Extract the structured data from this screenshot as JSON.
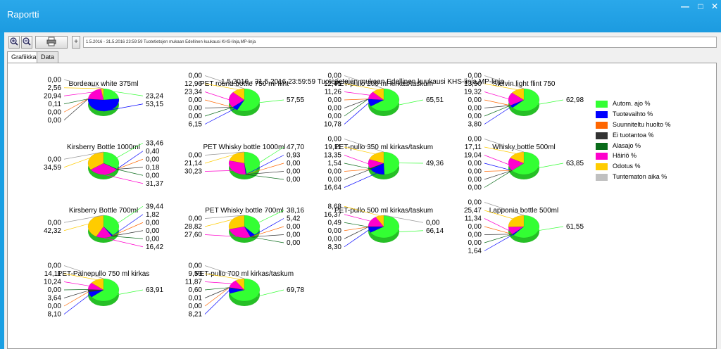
{
  "window": {
    "title": "Raportti"
  },
  "toolbar": {
    "path_text": "1.5.2016 - 31.5.2016 23:59:59 Tuotetietojen mukaan Edellinen kuukausi KHS-linja,MP-linja",
    "nav_label": "+"
  },
  "tabs": [
    {
      "label": "Grafiikka",
      "active": true
    },
    {
      "label": "Data",
      "active": false
    }
  ],
  "report_title": "1.5.2016 - 31.5.2016 23:59:59 Tuotetietojen mukaan Edellinen kuukausi KHS-linja,MP-linja",
  "legend": [
    {
      "label": "Autom. ajo %",
      "color": "#33ff33"
    },
    {
      "label": "Tuotevaihto %",
      "color": "#0000ff"
    },
    {
      "label": "Suunniteltu huolto %",
      "color": "#ff6600"
    },
    {
      "label": "Ei tuotantoa %",
      "color": "#333333"
    },
    {
      "label": "Alasajo %",
      "color": "#0a6b1a"
    },
    {
      "label": "Häiriö %",
      "color": "#ff00cc"
    },
    {
      "label": "Odotus %",
      "color": "#ffcc00"
    },
    {
      "label": "Tuntematon aika %",
      "color": "#c0c0c0"
    }
  ],
  "chart_data": [
    {
      "type": "pie",
      "title": "Bordeaux white 375ml",
      "values": [
        23.24,
        53.15,
        0.0,
        0.0,
        0.11,
        20.94,
        2.56,
        0.0
      ],
      "labels": [
        "23,24",
        "53,15",
        "0,00",
        "0,00",
        "0,11",
        "20,94",
        "2,56",
        "0,00"
      ]
    },
    {
      "type": "pie",
      "title": "PET round bottle 750 ml flint",
      "values": [
        57.55,
        6.15,
        0.0,
        0.0,
        0.0,
        23.34,
        12.96,
        0.0
      ],
      "labels": [
        "57,55",
        "6,15",
        "0,00",
        "0,00",
        "0,00",
        "23,34",
        "12,96",
        "0,00"
      ]
    },
    {
      "type": "pie",
      "title": "PET-pullo 200 ml kirkas/taskum",
      "values": [
        65.51,
        10.78,
        0.0,
        0.0,
        0.0,
        11.26,
        12.45,
        0.0
      ],
      "labels": [
        "65,51",
        "10,78",
        "0,00",
        "0,00",
        "0,00",
        "11,26",
        "12,45",
        "0,00"
      ]
    },
    {
      "type": "pie",
      "title": "Stelvin light flint 750",
      "values": [
        62.98,
        3.8,
        0.0,
        0.0,
        0.0,
        19.32,
        13.9,
        0.0
      ],
      "labels": [
        "62,98",
        "3,80",
        "0,00",
        "0,00",
        "0,00",
        "19,32",
        "13,90",
        "0,00"
      ]
    },
    {
      "type": "pie",
      "title": "Kirsberry Bottle 1000ml",
      "values": [
        33.46,
        0.4,
        0.0,
        0.18,
        0.0,
        31.37,
        34.59,
        0.0
      ],
      "labels": [
        "33,46",
        "0,40",
        "0,00",
        "0,18",
        "0,00",
        "31,37",
        "34,59",
        "0,00"
      ]
    },
    {
      "type": "pie",
      "title": "PET Whisky bottle 1000ml",
      "values": [
        47.7,
        0.93,
        0.0,
        0.0,
        0.0,
        30.23,
        21.14,
        0.0
      ],
      "labels": [
        "47,70",
        "0,93",
        "0,00",
        "0,00",
        "0,00",
        "30,23",
        "21,14",
        "0,00"
      ]
    },
    {
      "type": "pie",
      "title": "PET-pullo 350 ml kirkas/taskum",
      "values": [
        49.36,
        16.64,
        0.0,
        0.0,
        1.54,
        13.35,
        19.11,
        0.0
      ],
      "labels": [
        "49,36",
        "16,64",
        "0,00",
        "0,00",
        "1,54",
        "13,35",
        "19,11",
        "0,00"
      ]
    },
    {
      "type": "pie",
      "title": "Whisky bottle 500ml",
      "values": [
        63.85,
        0.0,
        0.0,
        0.0,
        0.0,
        19.04,
        17.11,
        0.0
      ],
      "labels": [
        "63,85",
        "0,00",
        "0,00",
        "0,00",
        "0,00",
        "19,04",
        "17,11",
        "0,00"
      ]
    },
    {
      "type": "pie",
      "title": "Kirsberry Bottle 700ml",
      "values": [
        39.44,
        1.82,
        0.0,
        0.0,
        0.0,
        16.42,
        42.32,
        0.0
      ],
      "labels": [
        "39,44",
        "1,82",
        "0,00",
        "0,00",
        "0,00",
        "16,42",
        "42,32",
        "0,00"
      ]
    },
    {
      "type": "pie",
      "title": "PET Whisky bottle 700ml",
      "values": [
        38.16,
        5.42,
        0.0,
        0.0,
        0.0,
        27.6,
        28.82,
        0.0
      ],
      "labels": [
        "38,16",
        "5,42",
        "0,00",
        "0,00",
        "0,00",
        "27,60",
        "28,82",
        "0,00"
      ]
    },
    {
      "type": "pie",
      "title": "PET-pullo 500 ml kirkas/taskum",
      "values": [
        66.14,
        8.3,
        0.0,
        0.0,
        0.49,
        16.37,
        8.68,
        0.0
      ],
      "labels": [
        "66,14",
        "8,30",
        "0,00",
        "0,00",
        "0,49",
        "16,37",
        "8,68",
        "0,00"
      ]
    },
    {
      "type": "pie",
      "title": "Lapponia bottle 500ml",
      "values": [
        61.55,
        1.64,
        0.0,
        0.0,
        0.0,
        11.34,
        25.47,
        0.0
      ],
      "labels": [
        "61,55",
        "1,64",
        "0,00",
        "0,00",
        "0,00",
        "11,34",
        "25,47",
        "0,00"
      ]
    },
    {
      "type": "pie",
      "title": "PET-Painepullo 750 ml kirkas",
      "values": [
        63.91,
        8.1,
        0.0,
        3.64,
        0.0,
        10.24,
        14.11,
        0.0
      ],
      "labels": [
        "63,91",
        "8,10",
        "0,00",
        "3,64",
        "0,00",
        "10,24",
        "14,11",
        "0,00"
      ]
    },
    {
      "type": "pie",
      "title": "PET-pullo 700 ml kirkas/taskum",
      "values": [
        69.78,
        8.21,
        0.0,
        0.01,
        0.6,
        11.87,
        9.53,
        0.0
      ],
      "labels": [
        "69,78",
        "8,21",
        "0,00",
        "0,01",
        "0,60",
        "11,87",
        "9,53",
        "0,00"
      ]
    }
  ]
}
